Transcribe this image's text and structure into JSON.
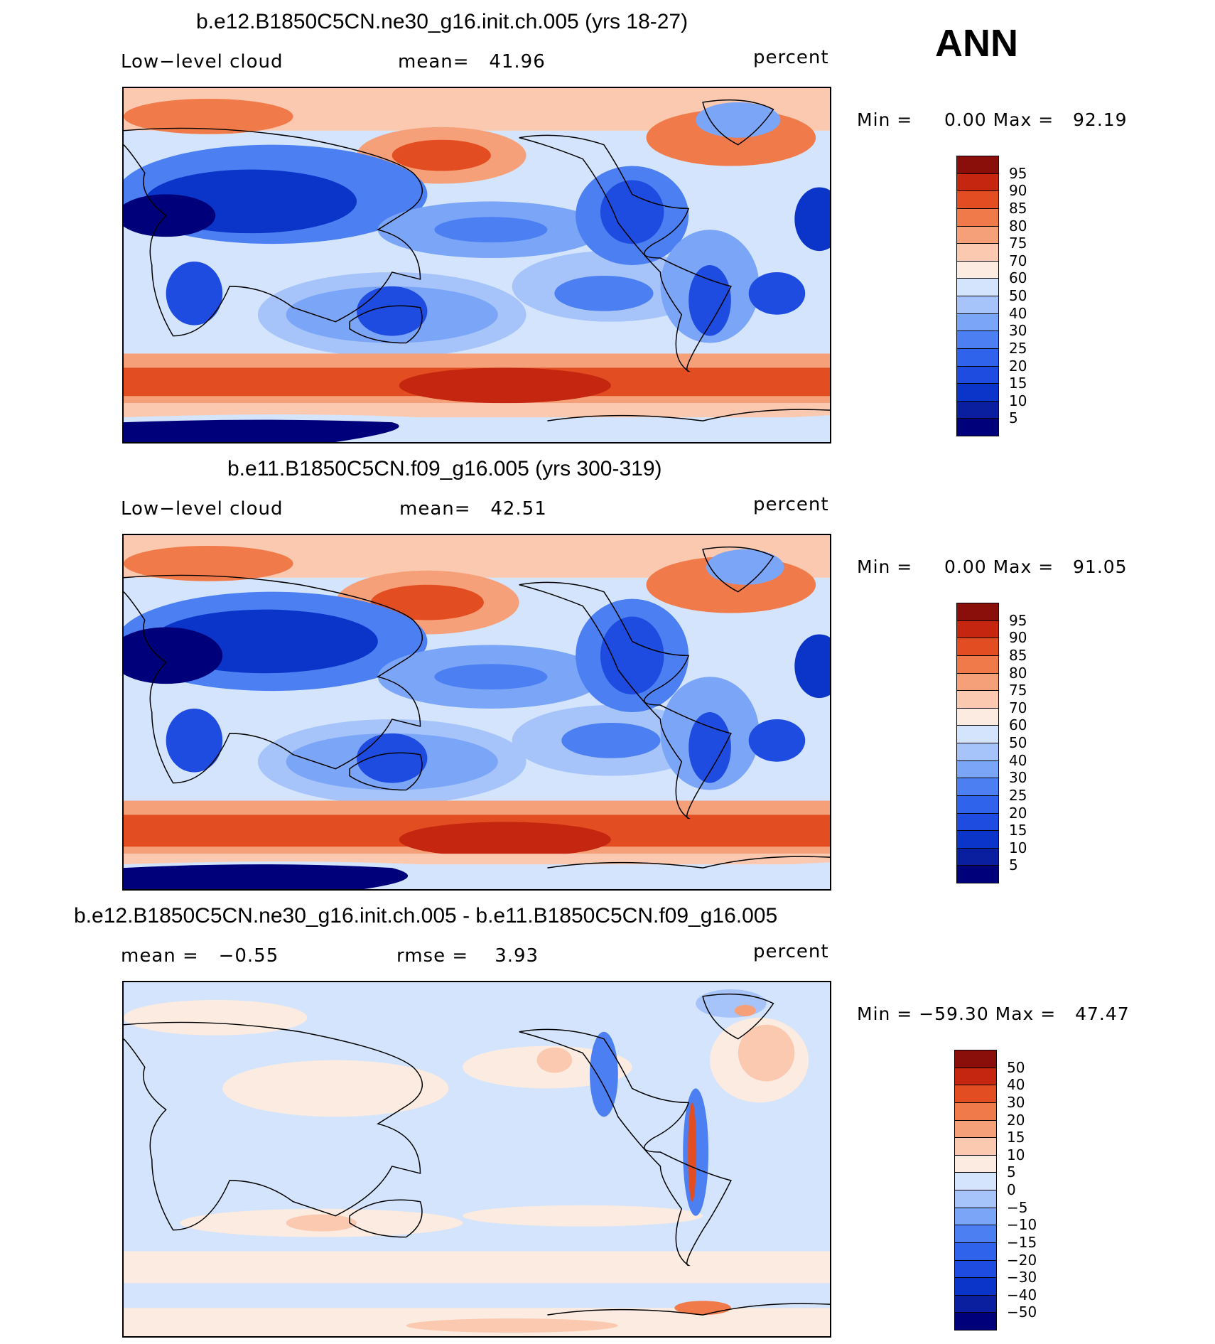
{
  "season": "ANN",
  "colors": {
    "abs": [
      "#00007a",
      "#0a1ea0",
      "#0a35c8",
      "#1e4be0",
      "#2f63ec",
      "#4b7ff2",
      "#7ba5f7",
      "#a6c4fa",
      "#d3e4fc",
      "#fbebe0",
      "#fbc9b0",
      "#f6a07a",
      "#f17a4a",
      "#e34d22",
      "#c5260f",
      "#8a0e0a"
    ],
    "diff": [
      "#00007a",
      "#0a1ea0",
      "#0a35c8",
      "#1e4be0",
      "#2f63ec",
      "#4b7ff2",
      "#7ba5f7",
      "#a6c4fa",
      "#d3e4fc",
      "#fbebe0",
      "#fbc9b0",
      "#f6a07a",
      "#f17a4a",
      "#e34d22",
      "#c5260f",
      "#8a0e0a"
    ]
  },
  "panels": [
    {
      "title": "b.e12.B1850C5CN.ne30_g16.init.ch.005 (yrs 18-27)",
      "left": "Low−level cloud",
      "center": "mean=   41.96",
      "right": "percent",
      "minmax": "Min =     0.00 Max =   92.19",
      "ticks": [
        "95",
        "90",
        "85",
        "80",
        "75",
        "70",
        "60",
        "50",
        "40",
        "30",
        "25",
        "20",
        "15",
        "10",
        "5"
      ]
    },
    {
      "title": "b.e11.B1850C5CN.f09_g16.005 (yrs 300-319)",
      "left": "Low−level cloud",
      "center": "mean=   42.51",
      "right": "percent",
      "minmax": "Min =     0.00 Max =   91.05",
      "ticks": [
        "95",
        "90",
        "85",
        "80",
        "75",
        "70",
        "60",
        "50",
        "40",
        "30",
        "25",
        "20",
        "15",
        "10",
        "5"
      ]
    },
    {
      "title": "b.e12.B1850C5CN.ne30_g16.init.ch.005 - b.e11.B1850C5CN.f09_g16.005",
      "left": "mean =   −0.55",
      "center": "rmse =    3.93",
      "right": "percent",
      "minmax": "Min = −59.30 Max =   47.47",
      "ticks": [
        "50",
        "40",
        "30",
        "20",
        "15",
        "10",
        "5",
        "0",
        "−5",
        "−10",
        "−15",
        "−20",
        "−30",
        "−40",
        "−50"
      ]
    }
  ]
}
